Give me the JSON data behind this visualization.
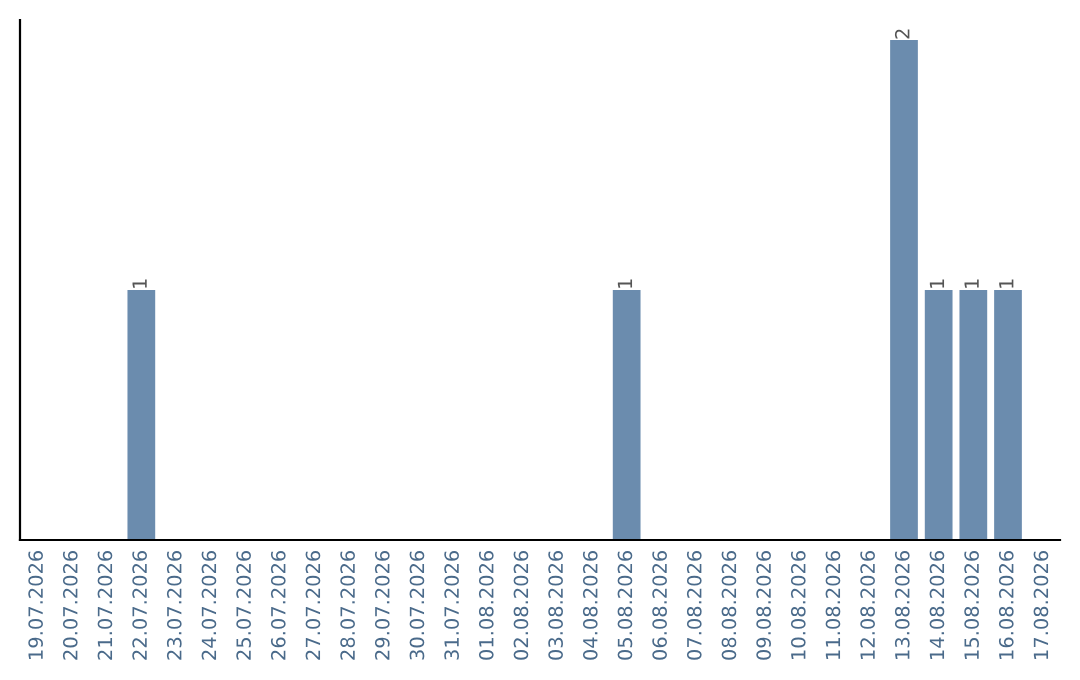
{
  "chart_data": {
    "type": "bar",
    "categories": [
      "19.07.2026",
      "20.07.2026",
      "21.07.2026",
      "22.07.2026",
      "23.07.2026",
      "24.07.2026",
      "25.07.2026",
      "26.07.2026",
      "27.07.2026",
      "28.07.2026",
      "29.07.2026",
      "30.07.2026",
      "31.07.2026",
      "01.08.2026",
      "02.08.2026",
      "03.08.2026",
      "04.08.2026",
      "05.08.2026",
      "06.08.2026",
      "07.08.2026",
      "08.08.2026",
      "09.08.2026",
      "10.08.2026",
      "11.08.2026",
      "12.08.2026",
      "13.08.2026",
      "14.08.2026",
      "15.08.2026",
      "16.08.2026",
      "17.08.2026"
    ],
    "values": [
      0,
      0,
      0,
      1,
      0,
      0,
      0,
      0,
      0,
      0,
      0,
      0,
      0,
      0,
      0,
      0,
      0,
      1,
      0,
      0,
      0,
      0,
      0,
      0,
      0,
      2,
      1,
      1,
      1,
      0
    ],
    "value_labels": [
      null,
      null,
      null,
      "1",
      null,
      null,
      null,
      null,
      null,
      null,
      null,
      null,
      null,
      null,
      null,
      null,
      null,
      "1",
      null,
      null,
      null,
      null,
      null,
      null,
      null,
      "2",
      "1",
      "1",
      "1",
      null
    ],
    "color": "#6b8cae",
    "tick_labels": "x",
    "grid": false,
    "legend": false
  }
}
